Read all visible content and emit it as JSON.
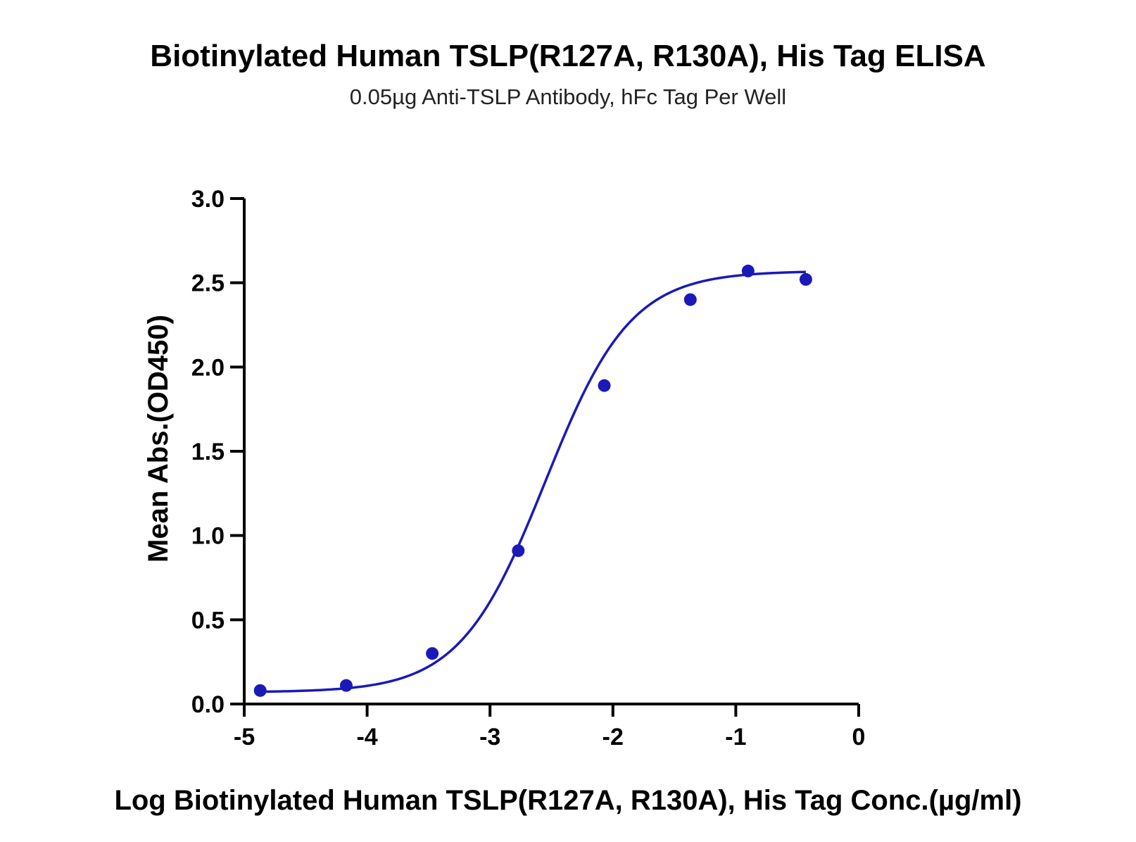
{
  "chart_data": {
    "type": "scatter",
    "title": "Biotinylated Human TSLP(R127A, R130A), His Tag ELISA",
    "subtitle": "0.05µg Anti-TSLP Antibody, hFc Tag Per Well",
    "xlabel": "Log Biotinylated Human TSLP(R127A, R130A), His Tag Conc.(µg/ml)",
    "ylabel": "Mean Abs.(OD450)",
    "xlim": [
      -5,
      0
    ],
    "ylim": [
      0,
      3.0
    ],
    "x_ticks": [
      "-5",
      "-4",
      "-3",
      "-2",
      "-1",
      "0"
    ],
    "y_ticks": [
      "0.0",
      "0.5",
      "1.0",
      "1.5",
      "2.0",
      "2.5",
      "3.0"
    ],
    "grid": false,
    "series": [
      {
        "points": [
          {
            "x": -4.87,
            "y": 0.08
          },
          {
            "x": -4.17,
            "y": 0.11
          },
          {
            "x": -3.47,
            "y": 0.3
          },
          {
            "x": -2.77,
            "y": 0.91
          },
          {
            "x": -2.07,
            "y": 1.89
          },
          {
            "x": -1.37,
            "y": 2.4
          },
          {
            "x": -0.9,
            "y": 2.57
          },
          {
            "x": -0.43,
            "y": 2.52
          }
        ],
        "fit": {
          "type": "4PL",
          "bottom": 0.07,
          "top": 2.57,
          "log_ec50": -2.55,
          "hill": 1.25,
          "x_range": [
            -4.87,
            -0.43
          ]
        },
        "color": "#1a1ab8"
      }
    ]
  }
}
